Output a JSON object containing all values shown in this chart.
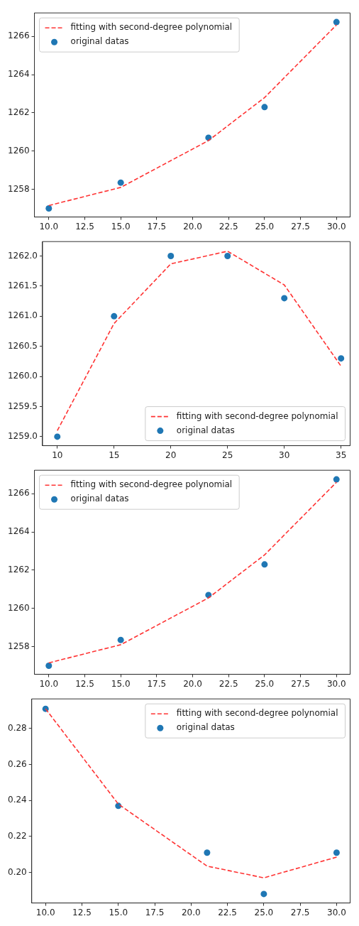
{
  "chart_data": [
    {
      "type": "scatter",
      "legend": "top left",
      "grid": false,
      "xlim": [
        9.0,
        30.95
      ],
      "ylim": [
        1256.55,
        1267.23
      ],
      "xticks": [
        {
          "value": 10,
          "label": "10.0"
        },
        {
          "value": 12.5,
          "label": "12.5"
        },
        {
          "value": 15,
          "label": "15.0"
        },
        {
          "value": 17.5,
          "label": "17.5"
        },
        {
          "value": 20,
          "label": "20.0"
        },
        {
          "value": 22.5,
          "label": "22.5"
        },
        {
          "value": 25,
          "label": "25.0"
        },
        {
          "value": 27.5,
          "label": "27.5"
        },
        {
          "value": 30,
          "label": "30.0"
        }
      ],
      "yticks": [
        1258,
        1260,
        1262,
        1264,
        1266
      ],
      "series": [
        {
          "name": "fitting with second-degree polynomial",
          "type": "line",
          "line_style": "dashed",
          "marker": "none",
          "color": "#ff3333",
          "x": [
            10,
            15,
            21.1,
            25,
            30
          ],
          "values": [
            1257.15,
            1258.1,
            1260.55,
            1262.8,
            1266.6
          ]
        },
        {
          "name": "original datas",
          "type": "scatter",
          "marker": "circle",
          "color": "#1f77b4",
          "x": [
            10,
            15,
            21.1,
            25,
            30
          ],
          "values": [
            1257.0,
            1258.35,
            1260.7,
            1262.3,
            1266.75
          ]
        }
      ]
    },
    {
      "type": "scatter",
      "legend": "bottom right",
      "grid": false,
      "xlim": [
        8.7,
        35.8
      ],
      "ylim": [
        1258.85,
        1262.24
      ],
      "xticks": [
        10,
        15,
        20,
        25,
        30,
        35
      ],
      "yticks": [
        {
          "value": 1259,
          "label": "1259.0"
        },
        {
          "value": 1259.5,
          "label": "1259.5"
        },
        {
          "value": 1260,
          "label": "1260.0"
        },
        {
          "value": 1260.5,
          "label": "1260.5"
        },
        {
          "value": 1261,
          "label": "1261.0"
        },
        {
          "value": 1261.5,
          "label": "1261.5"
        },
        {
          "value": 1262,
          "label": "1262.0"
        }
      ],
      "series": [
        {
          "name": "fitting with second-degree polynomial",
          "type": "line",
          "line_style": "dashed",
          "marker": "none",
          "color": "#ff3333",
          "x": [
            10,
            15,
            20,
            25,
            30,
            35
          ],
          "values": [
            1259.1,
            1260.88,
            1261.87,
            1262.08,
            1261.52,
            1260.17
          ]
        },
        {
          "name": "original datas",
          "type": "scatter",
          "marker": "circle",
          "color": "#1f77b4",
          "x": [
            10,
            15,
            20,
            25,
            30,
            35
          ],
          "values": [
            1259.0,
            1261.0,
            1262.0,
            1262.0,
            1261.3,
            1260.3
          ]
        }
      ]
    },
    {
      "type": "scatter",
      "legend": "top left",
      "grid": false,
      "xlim": [
        9.0,
        30.95
      ],
      "ylim": [
        1256.55,
        1267.23
      ],
      "xticks": [
        {
          "value": 10,
          "label": "10.0"
        },
        {
          "value": 12.5,
          "label": "12.5"
        },
        {
          "value": 15,
          "label": "15.0"
        },
        {
          "value": 17.5,
          "label": "17.5"
        },
        {
          "value": 20,
          "label": "20.0"
        },
        {
          "value": 22.5,
          "label": "22.5"
        },
        {
          "value": 25,
          "label": "25.0"
        },
        {
          "value": 27.5,
          "label": "27.5"
        },
        {
          "value": 30,
          "label": "30.0"
        }
      ],
      "yticks": [
        1258,
        1260,
        1262,
        1264,
        1266
      ],
      "series": [
        {
          "name": "fitting with second-degree polynomial",
          "type": "line",
          "line_style": "dashed",
          "marker": "none",
          "color": "#ff3333",
          "x": [
            10,
            15,
            21.1,
            25,
            30
          ],
          "values": [
            1257.15,
            1258.1,
            1260.55,
            1262.8,
            1266.6
          ]
        },
        {
          "name": "original datas",
          "type": "scatter",
          "marker": "circle",
          "color": "#1f77b4",
          "x": [
            10,
            15,
            21.1,
            25,
            30
          ],
          "values": [
            1257.0,
            1258.35,
            1260.7,
            1262.3,
            1266.75
          ]
        }
      ]
    },
    {
      "type": "scatter",
      "legend": "top right",
      "grid": false,
      "xlim": [
        9.05,
        30.93
      ],
      "ylim": [
        0.183,
        0.2965
      ],
      "xticks": [
        {
          "value": 10,
          "label": "10.0"
        },
        {
          "value": 12.5,
          "label": "12.5"
        },
        {
          "value": 15,
          "label": "15.0"
        },
        {
          "value": 17.5,
          "label": "17.5"
        },
        {
          "value": 20,
          "label": "20.0"
        },
        {
          "value": 22.5,
          "label": "22.5"
        },
        {
          "value": 25,
          "label": "25.0"
        },
        {
          "value": 27.5,
          "label": "27.5"
        },
        {
          "value": 30,
          "label": "30.0"
        }
      ],
      "yticks": [
        {
          "value": 0.2,
          "label": "0.20"
        },
        0.22,
        0.24,
        0.26,
        0.28
      ],
      "series": [
        {
          "name": "fitting with second-degree polynomial",
          "type": "line",
          "line_style": "dashed",
          "marker": "none",
          "color": "#ff3333",
          "x": [
            10,
            15,
            21.1,
            25,
            30
          ],
          "values": [
            0.291,
            0.238,
            0.2035,
            0.197,
            0.2085
          ]
        },
        {
          "name": "original datas",
          "type": "scatter",
          "marker": "circle",
          "color": "#1f77b4",
          "x": [
            10,
            15,
            21.1,
            25,
            30
          ],
          "values": [
            0.291,
            0.237,
            0.211,
            0.188,
            0.211
          ]
        }
      ]
    }
  ]
}
